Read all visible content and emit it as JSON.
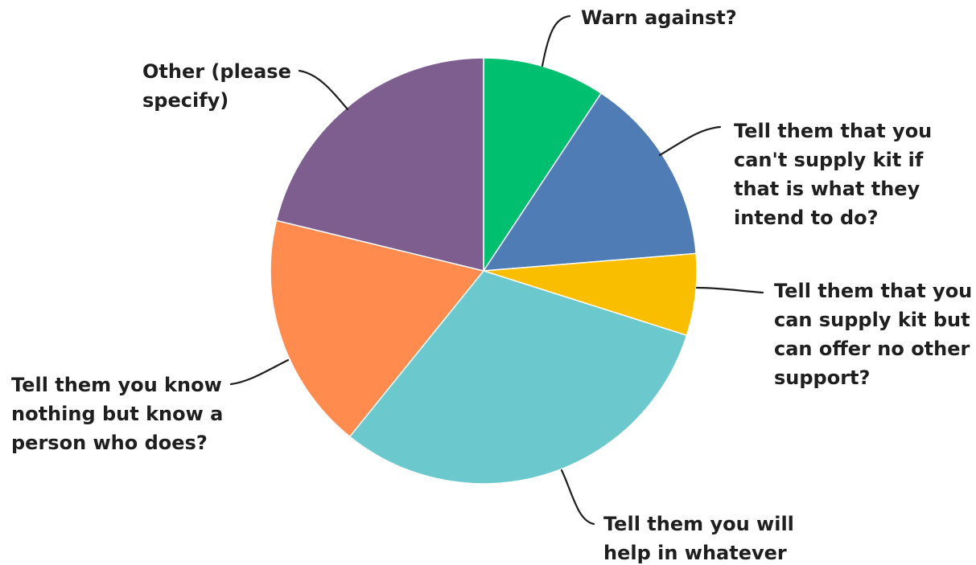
{
  "chart_data": {
    "type": "pie",
    "title": "",
    "slices": [
      {
        "label": "Warn against?",
        "value": 9.3,
        "color": "#00bf6f"
      },
      {
        "label": "Tell them that you can't supply kit if that is what they intend to do?",
        "value": 14.4,
        "color": "#507cb6"
      },
      {
        "label": "Tell them that you can supply kit but can offer no other support?",
        "value": 6.2,
        "color": "#f9be00"
      },
      {
        "label": "Tell them you will help in whatever",
        "value": 30.9,
        "color": "#6bc8cd"
      },
      {
        "label": "Tell them you know nothing but know a person who does?",
        "value": 18.0,
        "color": "#ff8b4f"
      },
      {
        "label": "Other (please specify)",
        "value": 21.2,
        "color": "#7d5e8e"
      }
    ],
    "label_lines": [
      [
        "Warn against?"
      ],
      [
        "Tell them that you",
        "can't supply kit if",
        "that is what they",
        "intend to do?"
      ],
      [
        "Tell them that you",
        "can supply kit but",
        "can offer no other",
        "support?"
      ],
      [
        "Tell them you will",
        "help in whatever"
      ],
      [
        "Tell them you know",
        "nothing but know a",
        "person who does?"
      ],
      [
        "Other (please",
        "specify)"
      ]
    ]
  }
}
